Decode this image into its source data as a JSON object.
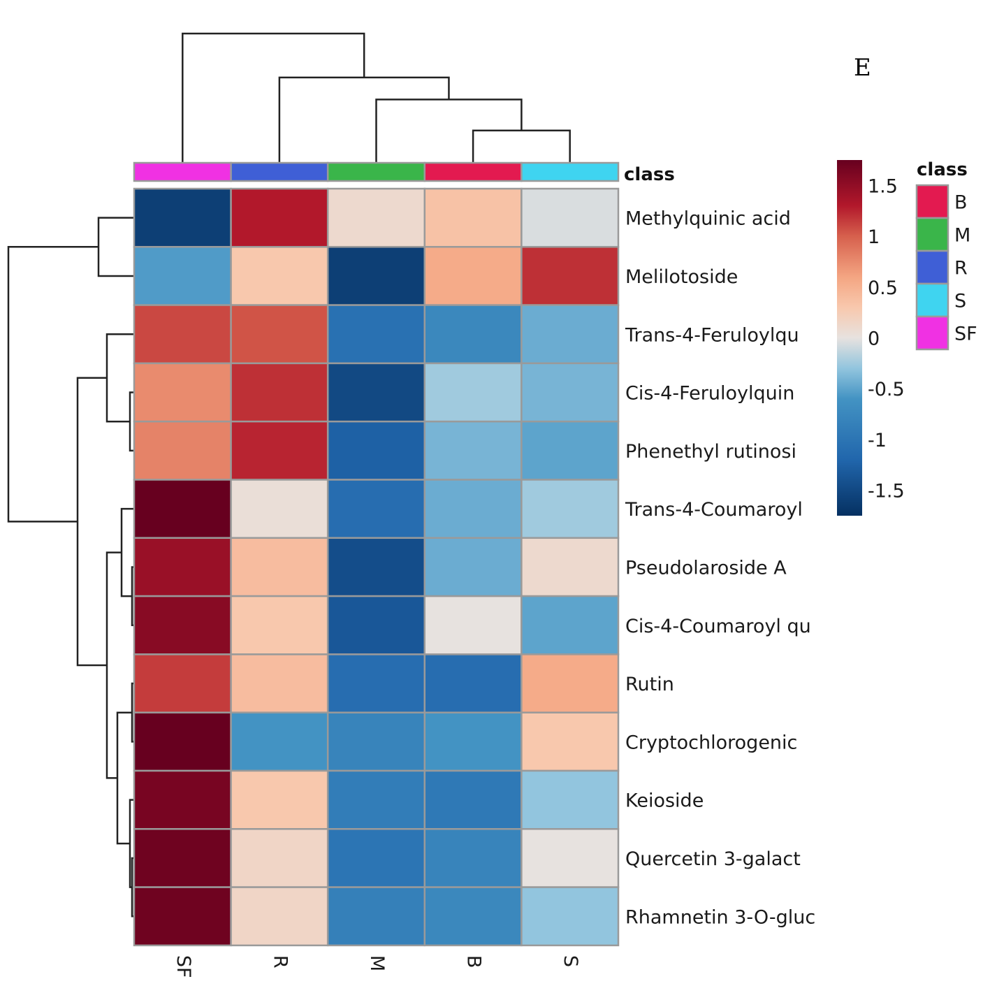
{
  "panel_label": "E",
  "chart_data": {
    "type": "heatmap",
    "title": "",
    "columns": [
      "SF",
      "R",
      "M",
      "B",
      "S"
    ],
    "column_class": [
      "SF",
      "R",
      "M",
      "B",
      "S"
    ],
    "class_annotation_label": "class",
    "rows": [
      "Methylquinic acid",
      "Melilotoside",
      "Trans-4-Feruloylqu",
      "Cis-4-Feruloylquin",
      "Phenethyl rutinosi",
      "Trans-4-Coumaroyl",
      "Pseudolaroside A",
      "Cis-4-Coumaroyl qu",
      "Rutin",
      "Cryptochlorogenic",
      "Keioside",
      "Quercetin 3-galact",
      "Rhamnetin 3-O-gluc"
    ],
    "values": [
      [
        -1.6,
        1.3,
        0.1,
        0.35,
        -0.05
      ],
      [
        -0.55,
        0.3,
        -1.6,
        0.55,
        1.2
      ],
      [
        1.1,
        1.05,
        -1.05,
        -0.75,
        -0.45
      ],
      [
        0.75,
        1.2,
        -1.5,
        -0.25,
        -0.4
      ],
      [
        0.8,
        1.25,
        -1.25,
        -0.4,
        -0.5
      ],
      [
        1.75,
        0.05,
        -1.1,
        -0.45,
        -0.25
      ],
      [
        1.45,
        0.4,
        -1.45,
        -0.45,
        0.1
      ],
      [
        1.55,
        0.3,
        -1.35,
        0.0,
        -0.5
      ],
      [
        1.15,
        0.4,
        -1.1,
        -1.1,
        0.55
      ],
      [
        1.75,
        -0.6,
        -0.8,
        -0.6,
        0.3
      ],
      [
        1.65,
        0.3,
        -0.9,
        -0.95,
        -0.3
      ],
      [
        1.7,
        0.15,
        -1.0,
        -0.8,
        0.0
      ],
      [
        1.7,
        0.15,
        -0.85,
        -0.75,
        -0.3
      ]
    ],
    "color_scale": {
      "stops": [
        {
          "value": -1.75,
          "color": "#053061"
        },
        {
          "value": -1.2,
          "color": "#2166ac"
        },
        {
          "value": -0.6,
          "color": "#4393c3"
        },
        {
          "value": -0.3,
          "color": "#92c5de"
        },
        {
          "value": 0.0,
          "color": "#e7e2df"
        },
        {
          "value": 0.3,
          "color": "#f8c8ad"
        },
        {
          "value": 0.6,
          "color": "#f4a582"
        },
        {
          "value": 1.0,
          "color": "#d6604d"
        },
        {
          "value": 1.3,
          "color": "#b2182b"
        },
        {
          "value": 1.75,
          "color": "#67001f"
        }
      ],
      "range": [
        -1.75,
        1.75
      ],
      "ticks": [
        1.5,
        1,
        0.5,
        0,
        -0.5,
        -1,
        -1.5
      ],
      "tick_labels": [
        "1.5",
        "1",
        "0.5",
        "0",
        "-0.5",
        "-1",
        "-1.5"
      ]
    },
    "class_legend": {
      "title": "class",
      "items": [
        {
          "label": "B",
          "color": "#e31a50"
        },
        {
          "label": "M",
          "color": "#3ab54a"
        },
        {
          "label": "R",
          "color": "#3f5fd6"
        },
        {
          "label": "S",
          "color": "#3fd4f0"
        },
        {
          "label": "SF",
          "color": "#f031e3"
        }
      ]
    },
    "column_dendrogram": [
      [
        [
          3,
          4
        ],
        0.25
      ],
      [
        [
          2,
          [
            3,
            4
          ]
        ],
        0.49
      ],
      [
        [
          1,
          [
            2,
            [
              3,
              4
            ]
          ]
        ],
        0.66
      ],
      [
        [
          0,
          [
            1,
            [
              2,
              [
                3,
                4
              ]
            ]
          ]
        ],
        1.0
      ]
    ],
    "row_dendrogram": [
      [
        [
          3,
          4
        ],
        0.02
      ],
      [
        [
          2,
          [
            3,
            4
          ]
        ],
        0.13
      ],
      [
        [
          6,
          7
        ],
        0.01
      ],
      [
        [
          5,
          [
            6,
            7
          ]
        ],
        0.06
      ],
      [
        [
          11,
          12
        ],
        0.01
      ],
      [
        [
          10,
          [
            11,
            12
          ]
        ],
        0.02
      ],
      [
        [
          8,
          9
        ],
        0.01
      ],
      [
        [
          [
            8,
            9
          ],
          [
            10,
            [
              11,
              12
            ]
          ]
        ],
        0.08
      ],
      [
        [
          [
            5,
            [
              6,
              7
            ]
          ],
          [
            [
              8,
              9
            ],
            [
              10,
              [
                11,
                12
              ]
            ]
          ]
        ],
        0.13
      ],
      [
        [
          [
            2,
            [
              3,
              4
            ]
          ],
          [
            [
              5,
              [
                6,
                7
              ]
            ],
            [
              [
                8,
                9
              ],
              [
                10,
                [
                  11,
                  12
                ]
              ]
            ]
          ]
        ],
        0.27
      ],
      [
        [
          0,
          1
        ],
        0.17
      ],
      [
        [
          [
            0,
            1
          ],
          [
            [
              2,
              [
                3,
                4
              ]
            ],
            [
              [
                5,
                [
                  6,
                  7
                ]
              ],
              [
                [
                  8,
                  9
                ],
                [
                  10,
                  [
                    11,
                    12
                  ]
                ]
              ]
            ]
          ]
        ],
        0.6
      ]
    ]
  }
}
